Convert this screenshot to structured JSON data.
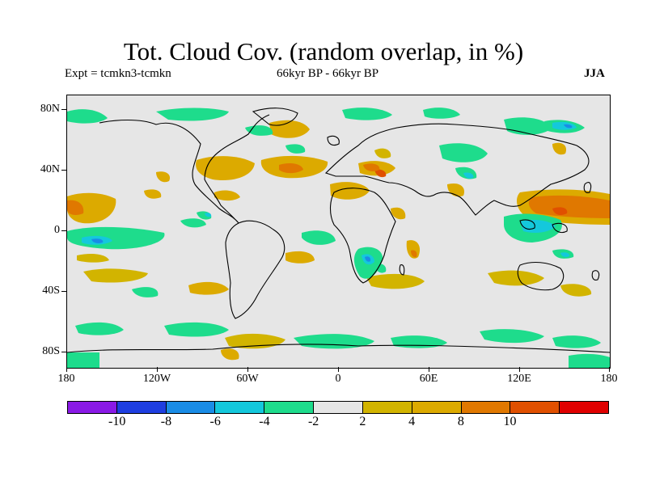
{
  "title": "Tot. Cloud Cov. (random overlap, in %)",
  "experiment": "Expt = tcmkn3-tcmkn",
  "period": "66kyr BP - 66kyr BP",
  "season": "JJA",
  "lat_labels": [
    "80N",
    "40N",
    "0",
    "40S",
    "80S"
  ],
  "lon_labels": [
    "180",
    "120W",
    "60W",
    "0",
    "60E",
    "120E",
    "180"
  ],
  "colorbar": {
    "colors": [
      "#8a1ae6",
      "#1e3ee0",
      "#1a8ce6",
      "#14c8dc",
      "#1edc8c",
      "#e6e6e6",
      "#d2b400",
      "#dcaa00",
      "#e07800",
      "#e05000",
      "#e00000"
    ],
    "labels": [
      "-10",
      "-8",
      "-6",
      "-4",
      "-2",
      "2",
      "4",
      "8",
      "10"
    ]
  },
  "chart_data": {
    "type": "heatmap",
    "title": "Tot. Cloud Cov. (random overlap, in %)",
    "variable": "total cloud cover difference (%)",
    "lon_range": [
      -180,
      180
    ],
    "lat_range": [
      -90,
      90
    ],
    "contour_levels": [
      -10,
      -8,
      -6,
      -4,
      -2,
      2,
      4,
      8,
      10
    ],
    "background_band": "-2 to 2",
    "notable_features": [
      {
        "region": "eastern tropical Pacific near 10N",
        "sign": "positive",
        "max_level": "4 to 8"
      },
      {
        "region": "western Pacific near 20N",
        "sign": "positive",
        "max_level": "4 to 8"
      },
      {
        "region": "central tropical Pacific near 10S",
        "sign": "negative",
        "max_level": "-6 to -4"
      },
      {
        "region": "southern Africa near 20S",
        "sign": "negative",
        "max_level": "-6 to -4"
      },
      {
        "region": "eastern Mediterranean / Middle East",
        "sign": "positive",
        "max_level": "8 to 10"
      },
      {
        "region": "North Atlantic near 40N",
        "sign": "positive",
        "max_level": "4 to 8"
      },
      {
        "region": "western Indian Ocean near 10N",
        "sign": "negative",
        "max_level": "-4 to -2"
      },
      {
        "region": "Southern Ocean near 60S",
        "sign": "negative",
        "max_level": "-4 to -2"
      }
    ]
  }
}
